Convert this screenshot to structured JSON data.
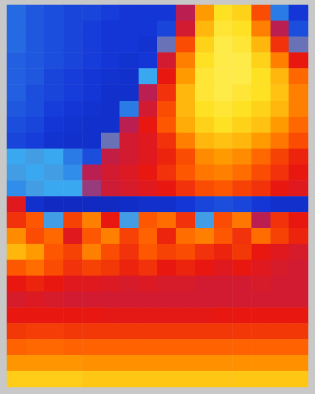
{
  "chart_data": {
    "type": "heatmap",
    "tick_labels": false,
    "zlim": [
      0,
      100
    ],
    "cells": [
      [
        18,
        16,
        15,
        14,
        14,
        13,
        12,
        12,
        12,
        40,
        75,
        88,
        85,
        60,
        20,
        12
      ],
      [
        18,
        16,
        15,
        14,
        13,
        12,
        12,
        12,
        14,
        45,
        80,
        90,
        88,
        70,
        40,
        15
      ],
      [
        18,
        16,
        15,
        14,
        13,
        12,
        12,
        11,
        30,
        60,
        85,
        92,
        90,
        80,
        55,
        30
      ],
      [
        17,
        16,
        15,
        14,
        13,
        12,
        11,
        12,
        45,
        70,
        88,
        92,
        92,
        85,
        70,
        50
      ],
      [
        17,
        16,
        14,
        13,
        12,
        11,
        10,
        25,
        50,
        75,
        90,
        92,
        92,
        88,
        80,
        65
      ],
      [
        17,
        15,
        14,
        13,
        12,
        10,
        10,
        40,
        55,
        80,
        90,
        92,
        90,
        88,
        82,
        70
      ],
      [
        16,
        15,
        13,
        12,
        11,
        10,
        20,
        45,
        60,
        80,
        88,
        90,
        88,
        85,
        80,
        70
      ],
      [
        15,
        14,
        12,
        11,
        10,
        10,
        40,
        50,
        62,
        78,
        85,
        88,
        85,
        82,
        75,
        65
      ],
      [
        14,
        13,
        11,
        10,
        10,
        30,
        45,
        48,
        55,
        70,
        80,
        82,
        80,
        75,
        68,
        60
      ],
      [
        25,
        26,
        25,
        20,
        15,
        42,
        45,
        48,
        52,
        60,
        72,
        75,
        72,
        65,
        58,
        52
      ],
      [
        26,
        25,
        26,
        22,
        40,
        45,
        47,
        50,
        55,
        62,
        68,
        70,
        66,
        60,
        55,
        50
      ],
      [
        22,
        26,
        25,
        25,
        35,
        44,
        46,
        48,
        50,
        55,
        60,
        62,
        58,
        55,
        50,
        48
      ],
      [
        48,
        10,
        8,
        8,
        8,
        8,
        9,
        10,
        10,
        12,
        14,
        15,
        14,
        12,
        10,
        10
      ],
      [
        55,
        62,
        26,
        58,
        70,
        50,
        26,
        62,
        66,
        55,
        26,
        60,
        68,
        40,
        55,
        50
      ],
      [
        72,
        60,
        65,
        48,
        62,
        70,
        58,
        64,
        52,
        66,
        70,
        62,
        55,
        66,
        58,
        52
      ],
      [
        80,
        75,
        62,
        58,
        70,
        60,
        55,
        62,
        58,
        60,
        55,
        52,
        56,
        50,
        48,
        46
      ],
      [
        62,
        66,
        60,
        55,
        58,
        56,
        52,
        55,
        50,
        52,
        50,
        48,
        50,
        48,
        46,
        45
      ],
      [
        50,
        52,
        50,
        48,
        48,
        47,
        46,
        47,
        46,
        46,
        45,
        45,
        45,
        46,
        45,
        45
      ],
      [
        46,
        47,
        46,
        45,
        45,
        45,
        45,
        45,
        45,
        45,
        45,
        45,
        45,
        45,
        45,
        45
      ],
      [
        50,
        50,
        50,
        50,
        50,
        49,
        49,
        49,
        49,
        49,
        49,
        50,
        50,
        50,
        50,
        50
      ],
      [
        56,
        57,
        57,
        56,
        56,
        56,
        56,
        56,
        56,
        56,
        56,
        56,
        56,
        56,
        56,
        56
      ],
      [
        64,
        65,
        65,
        64,
        64,
        64,
        64,
        64,
        64,
        64,
        64,
        64,
        64,
        64,
        64,
        64
      ],
      [
        74,
        74,
        74,
        74,
        73,
        73,
        73,
        73,
        73,
        73,
        73,
        73,
        73,
        73,
        73,
        73
      ],
      [
        84,
        84,
        84,
        84,
        83,
        83,
        83,
        83,
        83,
        83,
        83,
        83,
        83,
        83,
        83,
        83
      ]
    ]
  }
}
